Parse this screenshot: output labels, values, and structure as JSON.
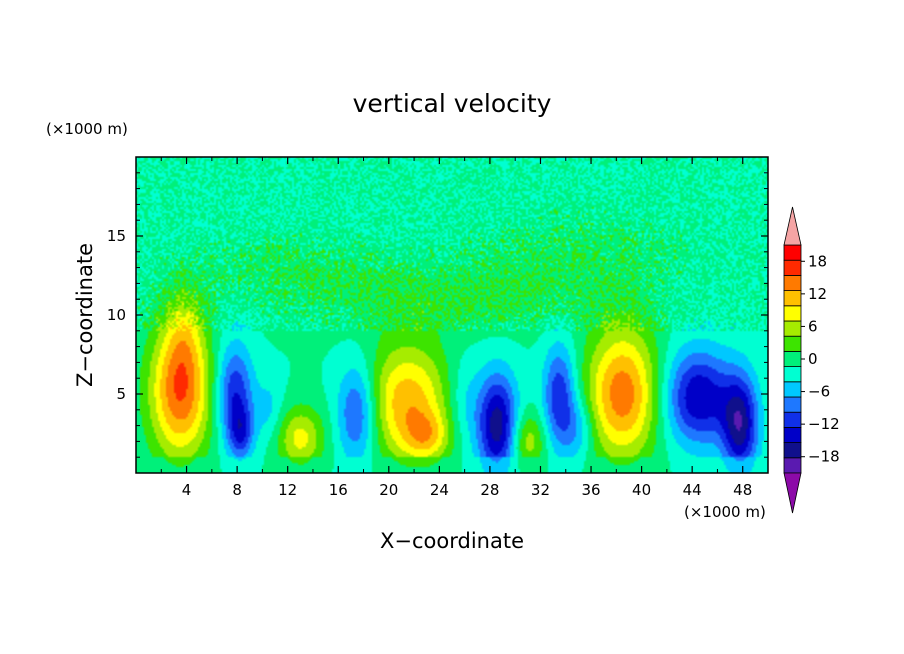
{
  "chart_data": {
    "type": "heatmap",
    "title": "vertical velocity",
    "xlabel": "X−coordinate",
    "ylabel": "Z−coordinate",
    "x_unit": "(×1000 m)",
    "y_unit": "(×1000 m)",
    "xlim": [
      0,
      50
    ],
    "ylim": [
      0,
      20
    ],
    "x_ticks": [
      4,
      8,
      12,
      16,
      20,
      24,
      28,
      32,
      36,
      40,
      44,
      48
    ],
    "y_ticks": [
      5,
      10,
      15
    ],
    "colorbar": {
      "levels": [
        -21,
        -18,
        -15,
        -12,
        -9,
        -6,
        -3,
        0,
        3,
        6,
        9,
        12,
        15,
        18,
        21
      ],
      "labels": [
        "18",
        "12",
        "6",
        "0",
        "−6",
        "−12",
        "−18"
      ],
      "label_values": [
        18,
        12,
        6,
        0,
        -6,
        -12,
        -18
      ],
      "colors": [
        "#5a1ab0",
        "#10108c",
        "#0000c8",
        "#1030e8",
        "#1e78ff",
        "#00c8ff",
        "#00ffd2",
        "#00f07a",
        "#3de400",
        "#a6ec00",
        "#ffff00",
        "#ffc000",
        "#ff7a00",
        "#ff2a00",
        "#ff0000"
      ],
      "under_color": "#8c0aa8",
      "over_color": "#f5a4a4"
    },
    "features": [
      {
        "x": 3.5,
        "z": 5.2,
        "value": 18,
        "sx": 1.7,
        "sz": 3.0
      },
      {
        "x": 3.8,
        "z": 9.0,
        "value": 5,
        "sx": 1.0,
        "sz": 2.0
      },
      {
        "x": 7.8,
        "z": 5.0,
        "value": -12,
        "sx": 1.0,
        "sz": 2.2
      },
      {
        "x": 8.3,
        "z": 2.5,
        "value": -9,
        "sx": 0.7,
        "sz": 1.2
      },
      {
        "x": 13.0,
        "z": 2.2,
        "value": 10,
        "sx": 1.3,
        "sz": 1.4
      },
      {
        "x": 10.5,
        "z": 4.0,
        "value": -4,
        "sx": 0.8,
        "sz": 1.4
      },
      {
        "x": 17.5,
        "z": 3.8,
        "value": -11,
        "sx": 1.1,
        "sz": 2.2
      },
      {
        "x": 21.5,
        "z": 4.5,
        "value": 14,
        "sx": 2.3,
        "sz": 2.6
      },
      {
        "x": 23.0,
        "z": 2.3,
        "value": 8,
        "sx": 1.3,
        "sz": 1.1
      },
      {
        "x": 26.0,
        "z": 4.5,
        "value": -4,
        "sx": 1.0,
        "sz": 2.0
      },
      {
        "x": 28.6,
        "z": 3.0,
        "value": -17,
        "sx": 1.1,
        "sz": 2.3
      },
      {
        "x": 31.0,
        "z": 2.0,
        "value": 8,
        "sx": 1.0,
        "sz": 1.3
      },
      {
        "x": 33.5,
        "z": 4.8,
        "value": -12,
        "sx": 0.9,
        "sz": 2.3
      },
      {
        "x": 35.0,
        "z": 2.8,
        "value": -6,
        "sx": 0.9,
        "sz": 1.4
      },
      {
        "x": 38.5,
        "z": 5.0,
        "value": 17,
        "sx": 2.0,
        "sz": 2.9
      },
      {
        "x": 44.5,
        "z": 4.8,
        "value": -15,
        "sx": 1.9,
        "sz": 2.1
      },
      {
        "x": 47.8,
        "z": 3.0,
        "value": -16,
        "sx": 1.0,
        "sz": 2.2
      },
      {
        "x": 25.0,
        "z": 11.0,
        "value": 3,
        "sx": 8.0,
        "sz": 1.5
      },
      {
        "x": 12.0,
        "z": 13.0,
        "value": 2,
        "sx": 5.0,
        "sz": 1.5
      },
      {
        "x": 35.0,
        "z": 14.0,
        "value": 2,
        "sx": 6.0,
        "sz": 1.8
      }
    ]
  }
}
